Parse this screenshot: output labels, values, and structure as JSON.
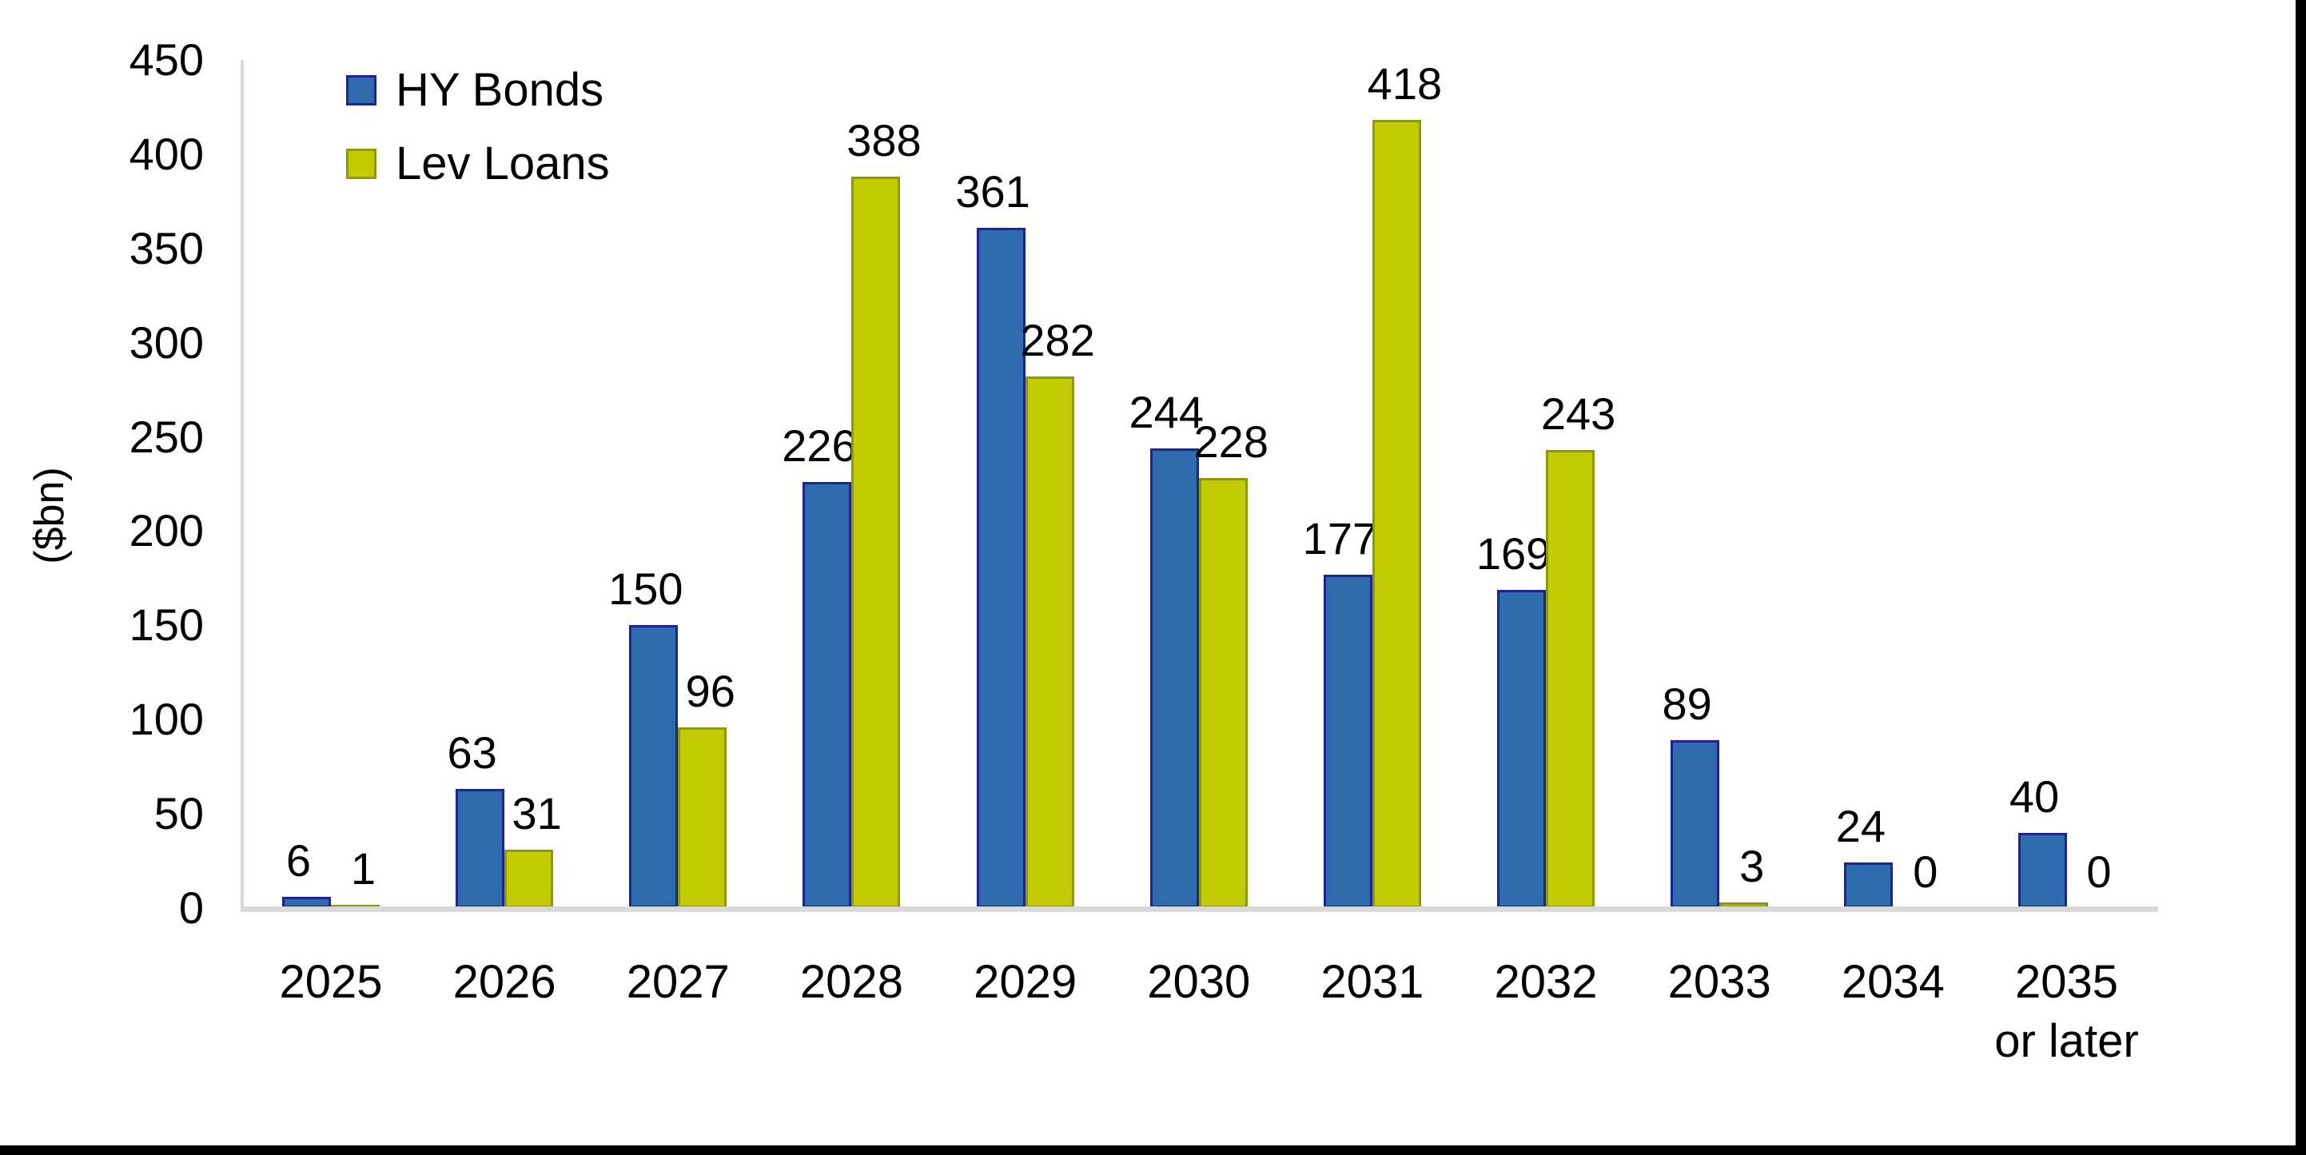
{
  "page": {
    "background_color": "#FFFFFF",
    "frame_border_color": "#000000"
  },
  "chart_data": {
    "type": "bar",
    "title": "",
    "xlabel": "",
    "ylabel": "($bn)",
    "ylim": [
      0,
      450
    ],
    "ytick_step": 50,
    "grid": false,
    "legend_position": "top-left",
    "axis_color": "#D9D9D9",
    "text_color": "#000000",
    "categories": [
      [
        "2025"
      ],
      [
        "2026"
      ],
      [
        "2027"
      ],
      [
        "2028"
      ],
      [
        "2029"
      ],
      [
        "2030"
      ],
      [
        "2031"
      ],
      [
        "2032"
      ],
      [
        "2033"
      ],
      [
        "2034"
      ],
      [
        "2035",
        "or later"
      ]
    ],
    "series": [
      {
        "name": "HY Bonds",
        "fill": "#2E6BAD",
        "border": "#1B249B",
        "values": [
          6,
          63,
          150,
          226,
          361,
          244,
          177,
          169,
          89,
          24,
          40
        ]
      },
      {
        "name": "Lev Loans",
        "fill": "#C2CC00",
        "border": "#8E9B00",
        "values": [
          1,
          31,
          96,
          388,
          282,
          228,
          418,
          243,
          3,
          0,
          0
        ]
      }
    ],
    "yticks": [
      0,
      50,
      100,
      150,
      200,
      250,
      300,
      350,
      400,
      450
    ]
  }
}
